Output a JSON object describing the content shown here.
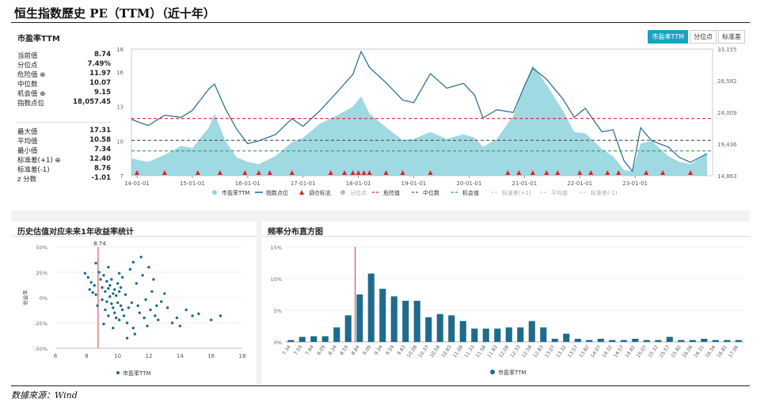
{
  "title": "恒生指数歷史 PE（TTM）（近十年）",
  "source": "数據來源：Wind",
  "top_panel": {
    "title": "市盈率TTM",
    "buttons": [
      "市盈率TTM",
      "分位点",
      "标准差"
    ],
    "stats1": [
      {
        "label": "当前值",
        "value": "8.74"
      },
      {
        "label": "分位点",
        "value": "7.49%"
      },
      {
        "label": "危险值 ⊕",
        "value": "11.97"
      },
      {
        "label": "中位数",
        "value": "10.07"
      },
      {
        "label": "机会值 ⊕",
        "value": "9.15"
      },
      {
        "label": "指数点位",
        "value": "18,057.45"
      }
    ],
    "stats2": [
      {
        "label": "最大值",
        "value": "17.31"
      },
      {
        "label": "平均值",
        "value": "10.58"
      },
      {
        "label": "最小值",
        "value": "7.34"
      },
      {
        "label": "标准差(+1) ⊕",
        "value": "12.40"
      },
      {
        "label": "标准差(-1)",
        "value": "8.76"
      },
      {
        "label": "z 分数",
        "value": "-1.01"
      }
    ]
  },
  "scatter_panel": {
    "title": "历史估值对应未来1年收益率统计"
  },
  "histogram_panel": {
    "title": "频率分布直方图"
  },
  "colors": {
    "area": "#8ed2dd",
    "line": "#1f6b8e",
    "danger": "#d62728",
    "median": "#555555",
    "opportunity": "#2ca05a",
    "bar": "#1f6b8e",
    "accent": "#1aa3c0"
  },
  "chart_data": [
    {
      "type": "area",
      "title": "市盈率TTM",
      "x_ticks": [
        "14-01-01",
        "15-01-01",
        "16-01-01",
        "17-01-01",
        "18-01-01",
        "19-01-01",
        "20-01-01",
        "21-01-01",
        "22-01-01",
        "23-01-01"
      ],
      "x_range": [
        2013.9,
        2024.4
      ],
      "y_left_ticks": [
        "7",
        "10",
        "13",
        "16",
        "18"
      ],
      "y_left_range": [
        7,
        18
      ],
      "y_right_ticks": [
        "14,863",
        "19,436",
        "24,009",
        "28,582",
        "33,155"
      ],
      "y_right_range": [
        14863,
        33155
      ],
      "legend": [
        "市盈率TTM",
        "指数点位",
        "调仓标志",
        "分位点",
        "危险值",
        "中位数",
        "机会值",
        "标准差(+1)",
        "平均值",
        "标准差(-1)"
      ],
      "reference_lines": {
        "danger": 11.97,
        "median": 10.07,
        "opportunity": 9.15
      },
      "pe_series": [
        [
          2013.9,
          8.5
        ],
        [
          2014.2,
          8.2
        ],
        [
          2014.5,
          8.8
        ],
        [
          2014.8,
          9.6
        ],
        [
          2015.0,
          9.4
        ],
        [
          2015.3,
          11.2
        ],
        [
          2015.4,
          12.4
        ],
        [
          2015.6,
          10.0
        ],
        [
          2015.8,
          8.6
        ],
        [
          2016.0,
          8.2
        ],
        [
          2016.2,
          8.0
        ],
        [
          2016.5,
          8.7
        ],
        [
          2016.8,
          9.9
        ],
        [
          2017.0,
          10.3
        ],
        [
          2017.3,
          11.5
        ],
        [
          2017.6,
          12.2
        ],
        [
          2017.9,
          13.0
        ],
        [
          2018.05,
          13.9
        ],
        [
          2018.2,
          12.4
        ],
        [
          2018.5,
          11.2
        ],
        [
          2018.8,
          10.1
        ],
        [
          2019.0,
          10.2
        ],
        [
          2019.3,
          10.8
        ],
        [
          2019.6,
          10.2
        ],
        [
          2019.9,
          10.6
        ],
        [
          2020.1,
          10.3
        ],
        [
          2020.25,
          9.5
        ],
        [
          2020.5,
          10.2
        ],
        [
          2020.8,
          12.2
        ],
        [
          2021.0,
          14.8
        ],
        [
          2021.15,
          16.6
        ],
        [
          2021.4,
          14.9
        ],
        [
          2021.7,
          12.6
        ],
        [
          2021.9,
          10.8
        ],
        [
          2022.1,
          10.7
        ],
        [
          2022.4,
          9.3
        ],
        [
          2022.6,
          8.7
        ],
        [
          2022.8,
          7.5
        ],
        [
          2022.95,
          7.4
        ],
        [
          2023.1,
          9.8
        ],
        [
          2023.3,
          10.0
        ],
        [
          2023.6,
          8.7
        ],
        [
          2023.8,
          8.2
        ],
        [
          2024.0,
          8.0
        ],
        [
          2024.3,
          8.9
        ]
      ],
      "index_series": [
        [
          2013.9,
          23000
        ],
        [
          2014.2,
          22100
        ],
        [
          2014.5,
          23600
        ],
        [
          2014.8,
          23300
        ],
        [
          2015.0,
          24300
        ],
        [
          2015.3,
          27400
        ],
        [
          2015.4,
          28100
        ],
        [
          2015.6,
          24500
        ],
        [
          2015.8,
          21600
        ],
        [
          2016.0,
          19500
        ],
        [
          2016.2,
          19900
        ],
        [
          2016.5,
          20800
        ],
        [
          2016.8,
          23100
        ],
        [
          2017.0,
          22000
        ],
        [
          2017.3,
          24200
        ],
        [
          2017.6,
          26800
        ],
        [
          2017.9,
          29500
        ],
        [
          2018.05,
          32800
        ],
        [
          2018.2,
          30500
        ],
        [
          2018.5,
          28300
        ],
        [
          2018.8,
          25800
        ],
        [
          2019.0,
          25400
        ],
        [
          2019.3,
          29600
        ],
        [
          2019.6,
          27500
        ],
        [
          2019.9,
          28200
        ],
        [
          2020.1,
          26500
        ],
        [
          2020.25,
          23200
        ],
        [
          2020.5,
          24400
        ],
        [
          2020.8,
          24000
        ],
        [
          2021.0,
          27800
        ],
        [
          2021.15,
          30400
        ],
        [
          2021.4,
          28800
        ],
        [
          2021.7,
          25900
        ],
        [
          2021.9,
          23300
        ],
        [
          2022.1,
          24600
        ],
        [
          2022.4,
          21200
        ],
        [
          2022.6,
          21500
        ],
        [
          2022.8,
          17000
        ],
        [
          2022.95,
          15500
        ],
        [
          2023.1,
          21800
        ],
        [
          2023.3,
          19900
        ],
        [
          2023.6,
          19000
        ],
        [
          2023.8,
          17500
        ],
        [
          2024.0,
          16800
        ],
        [
          2024.3,
          18057
        ]
      ],
      "rebalance_x": [
        2014.0,
        2014.5,
        2015.1,
        2015.5,
        2015.95,
        2016.2,
        2016.4,
        2016.8,
        2017.5,
        2017.75,
        2017.9,
        2018.0,
        2018.1,
        2018.2,
        2018.5,
        2018.8,
        2019.3,
        2020.7,
        2020.9,
        2021.15,
        2021.4,
        2021.6,
        2022.0,
        2022.2,
        2022.5,
        2022.7,
        2023.2,
        2023.5,
        2024.0
      ]
    },
    {
      "type": "scatter",
      "title": "历史估值对应未来1年收益率统计",
      "xlabel": "",
      "ylabel": "收益率",
      "x_ticks": [
        "6",
        "8",
        "10",
        "12",
        "14",
        "16",
        "18"
      ],
      "xlim": [
        6,
        18
      ],
      "y_ticks": [
        "50%",
        "25%",
        "0%",
        "-25%",
        "-50%"
      ],
      "ylim": [
        -50,
        50
      ],
      "marker_line_x": 8.74,
      "marker_label": "8.74",
      "legend": [
        "市盈率TTM"
      ],
      "points": [
        [
          7.9,
          24
        ],
        [
          8.1,
          20
        ],
        [
          8.3,
          15
        ],
        [
          8.4,
          5
        ],
        [
          8.5,
          12
        ],
        [
          8.6,
          3
        ],
        [
          8.7,
          -8
        ],
        [
          8.8,
          25
        ],
        [
          8.9,
          18
        ],
        [
          9.0,
          10
        ],
        [
          9.0,
          -2
        ],
        [
          9.1,
          22
        ],
        [
          9.2,
          6
        ],
        [
          9.2,
          -12
        ],
        [
          9.3,
          16
        ],
        [
          9.3,
          -4
        ],
        [
          9.4,
          9
        ],
        [
          9.4,
          -18
        ],
        [
          9.5,
          12
        ],
        [
          9.5,
          1
        ],
        [
          9.6,
          -6
        ],
        [
          9.6,
          18
        ],
        [
          9.7,
          4
        ],
        [
          9.7,
          -10
        ],
        [
          9.8,
          8
        ],
        [
          9.8,
          -15
        ],
        [
          9.9,
          2
        ],
        [
          9.9,
          -20
        ],
        [
          10.0,
          14
        ],
        [
          10.0,
          -5
        ],
        [
          10.1,
          6
        ],
        [
          10.1,
          -22
        ],
        [
          10.2,
          -8
        ],
        [
          10.2,
          10
        ],
        [
          10.3,
          -12
        ],
        [
          10.3,
          20
        ],
        [
          10.4,
          -18
        ],
        [
          10.5,
          3
        ],
        [
          10.6,
          -25
        ],
        [
          10.7,
          -10
        ],
        [
          10.8,
          28
        ],
        [
          10.9,
          -5
        ],
        [
          11.0,
          -30
        ],
        [
          11.0,
          35
        ],
        [
          11.2,
          14
        ],
        [
          11.3,
          -8
        ],
        [
          11.4,
          -15
        ],
        [
          11.5,
          40
        ],
        [
          11.6,
          22
        ],
        [
          11.7,
          -20
        ],
        [
          11.8,
          -2
        ],
        [
          11.9,
          -28
        ],
        [
          12.0,
          30
        ],
        [
          12.1,
          -12
        ],
        [
          12.2,
          6
        ],
        [
          12.3,
          18
        ],
        [
          12.4,
          -18
        ],
        [
          12.5,
          -8
        ],
        [
          12.6,
          -22
        ],
        [
          13.0,
          4
        ],
        [
          13.2,
          -10
        ],
        [
          13.5,
          -25
        ],
        [
          13.8,
          -20
        ],
        [
          14.0,
          -28
        ],
        [
          14.4,
          -12
        ],
        [
          14.8,
          -18
        ],
        [
          15.2,
          -16
        ],
        [
          16.0,
          -22
        ],
        [
          16.6,
          -18
        ],
        [
          10.1,
          24
        ],
        [
          9.4,
          30
        ],
        [
          9.1,
          -26
        ],
        [
          11.1,
          -36
        ],
        [
          8.6,
          34
        ],
        [
          9.7,
          -30
        ],
        [
          10.6,
          -40
        ],
        [
          12.8,
          -4
        ],
        [
          8.2,
          8
        ]
      ]
    },
    {
      "type": "bar",
      "title": "频率分布直方图",
      "categories": [
        "7.34",
        "7.59",
        "7.84",
        "8.09",
        "8.34",
        "8.59",
        "8.84",
        "9.09",
        "9.34",
        "9.59",
        "9.83",
        "10.08",
        "10.33",
        "10.58",
        "10.83",
        "11.08",
        "11.33",
        "11.58",
        "11.83",
        "12.08",
        "12.33",
        "12.58",
        "12.83",
        "13.07",
        "13.32",
        "13.57",
        "13.82",
        "14.07",
        "14.32",
        "14.57",
        "14.82",
        "15.07",
        "15.32",
        "15.57",
        "15.82",
        "16.06",
        "16.31",
        "16.56",
        "16.81",
        "17.06"
      ],
      "values": [
        0.3,
        0.8,
        0.9,
        0.9,
        2.3,
        4.2,
        7.5,
        10.8,
        8.4,
        7.2,
        6.5,
        6.5,
        3.9,
        4.4,
        4.2,
        3.3,
        2.1,
        2.1,
        2.1,
        2.3,
        2.3,
        3.3,
        2.3,
        0.5,
        1.3,
        0.5,
        0.3,
        0.5,
        0.3,
        0.3,
        0.5,
        0.3,
        0.3,
        0.8,
        0.3,
        0.3,
        0.5,
        0.3,
        0.3,
        0.3
      ],
      "y_ticks": [
        "0%",
        "5%",
        "10%",
        "15%"
      ],
      "ylim": [
        0,
        15
      ],
      "marker_value": "8.74",
      "legend": [
        "市盈率TTM"
      ]
    }
  ]
}
